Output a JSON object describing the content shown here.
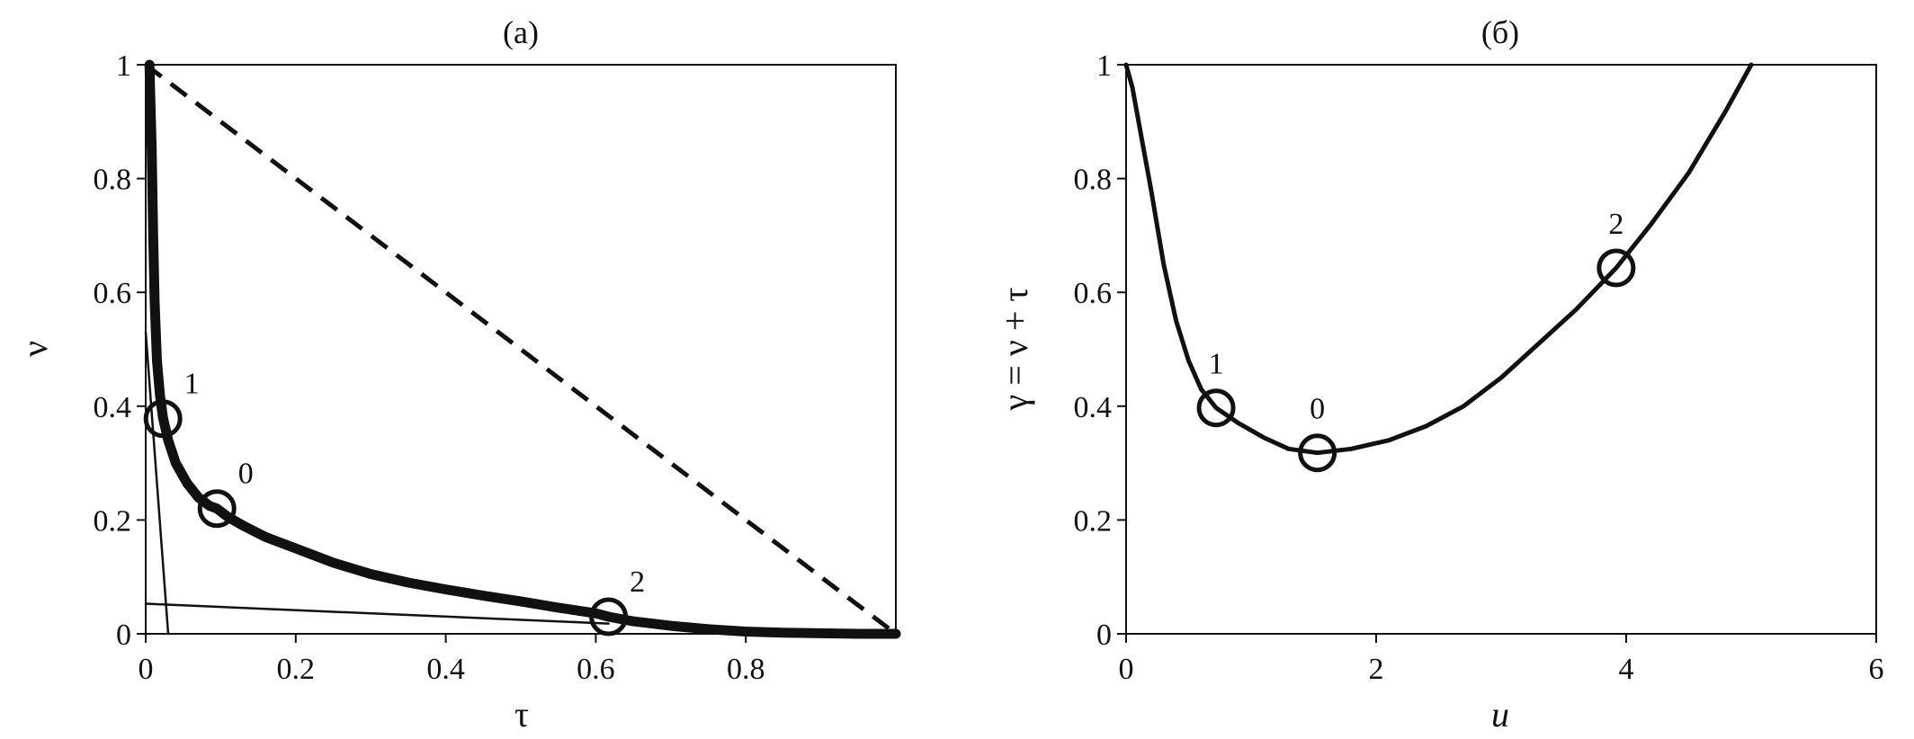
{
  "chart_data": [
    {
      "type": "line",
      "title": "(a)",
      "xlabel": "τ",
      "ylabel": "ν",
      "xlim": [
        0,
        1
      ],
      "ylim": [
        0,
        1
      ],
      "xticks": [
        0,
        0.2,
        0.4,
        0.6,
        0.8
      ],
      "xtick_labels": [
        "0",
        "0.2",
        "0.4",
        "0.6",
        "0.8"
      ],
      "yticks": [
        0,
        0.2,
        0.4,
        0.6,
        0.8,
        1
      ],
      "ytick_labels": [
        "0",
        "0.2",
        "0.4",
        "0.6",
        "0.8",
        "1"
      ],
      "grid": false,
      "series": [
        {
          "style": "thick-solid",
          "x": [
            0.005,
            0.006,
            0.008,
            0.01,
            0.012,
            0.015,
            0.019,
            0.023,
            0.03,
            0.04,
            0.055,
            0.07,
            0.085,
            0.095,
            0.11,
            0.13,
            0.16,
            0.2,
            0.25,
            0.3,
            0.35,
            0.4,
            0.45,
            0.5,
            0.55,
            0.6,
            0.617,
            0.65,
            0.7,
            0.75,
            0.8,
            0.85,
            0.9,
            0.95,
            1.0
          ],
          "y": [
            1.0,
            0.95,
            0.85,
            0.7,
            0.58,
            0.48,
            0.42,
            0.38,
            0.34,
            0.3,
            0.265,
            0.24,
            0.225,
            0.22,
            0.205,
            0.19,
            0.17,
            0.15,
            0.125,
            0.105,
            0.09,
            0.078,
            0.067,
            0.057,
            0.046,
            0.036,
            0.03,
            0.022,
            0.014,
            0.008,
            0.004,
            0.002,
            0.001,
            0.0,
            0.0
          ]
        },
        {
          "style": "dashed",
          "x": [
            0,
            1
          ],
          "y": [
            1,
            0
          ]
        },
        {
          "style": "thin-tangent",
          "x": [
            0.0,
            0.03
          ],
          "y": [
            0.53,
            0.0
          ]
        },
        {
          "style": "thin-tangent",
          "x": [
            0.0,
            0.617
          ],
          "y": [
            0.053,
            0.018
          ]
        }
      ],
      "markers": [
        {
          "label": "1",
          "x": 0.023,
          "y": 0.378
        },
        {
          "label": "0",
          "x": 0.095,
          "y": 0.22
        },
        {
          "label": "2",
          "x": 0.617,
          "y": 0.03
        }
      ]
    },
    {
      "type": "line",
      "title": "(б)",
      "xlabel": "u",
      "ylabel": "γ = ν + τ",
      "xlim": [
        0,
        6
      ],
      "ylim": [
        0,
        1
      ],
      "xticks": [
        0,
        2,
        4,
        6
      ],
      "xtick_labels": [
        "0",
        "2",
        "4",
        "6"
      ],
      "yticks": [
        0,
        0.2,
        0.4,
        0.6,
        0.8,
        1
      ],
      "ytick_labels": [
        "0",
        "0.2",
        "0.4",
        "0.6",
        "0.8",
        "1"
      ],
      "grid": false,
      "series": [
        {
          "style": "solid",
          "x": [
            0.0,
            0.05,
            0.1,
            0.2,
            0.3,
            0.4,
            0.5,
            0.6,
            0.72,
            0.9,
            1.1,
            1.3,
            1.53,
            1.8,
            2.1,
            2.4,
            2.7,
            3.0,
            3.3,
            3.6,
            3.92,
            4.2,
            4.5,
            4.8,
            5.0
          ],
          "y": [
            1.0,
            0.96,
            0.9,
            0.78,
            0.65,
            0.55,
            0.48,
            0.43,
            0.397,
            0.37,
            0.345,
            0.325,
            0.318,
            0.325,
            0.34,
            0.365,
            0.4,
            0.45,
            0.51,
            0.57,
            0.643,
            0.72,
            0.81,
            0.92,
            1.0
          ]
        }
      ],
      "markers": [
        {
          "label": "1",
          "x": 0.72,
          "y": 0.397
        },
        {
          "label": "0",
          "x": 1.53,
          "y": 0.318
        },
        {
          "label": "2",
          "x": 3.92,
          "y": 0.643
        }
      ]
    }
  ]
}
